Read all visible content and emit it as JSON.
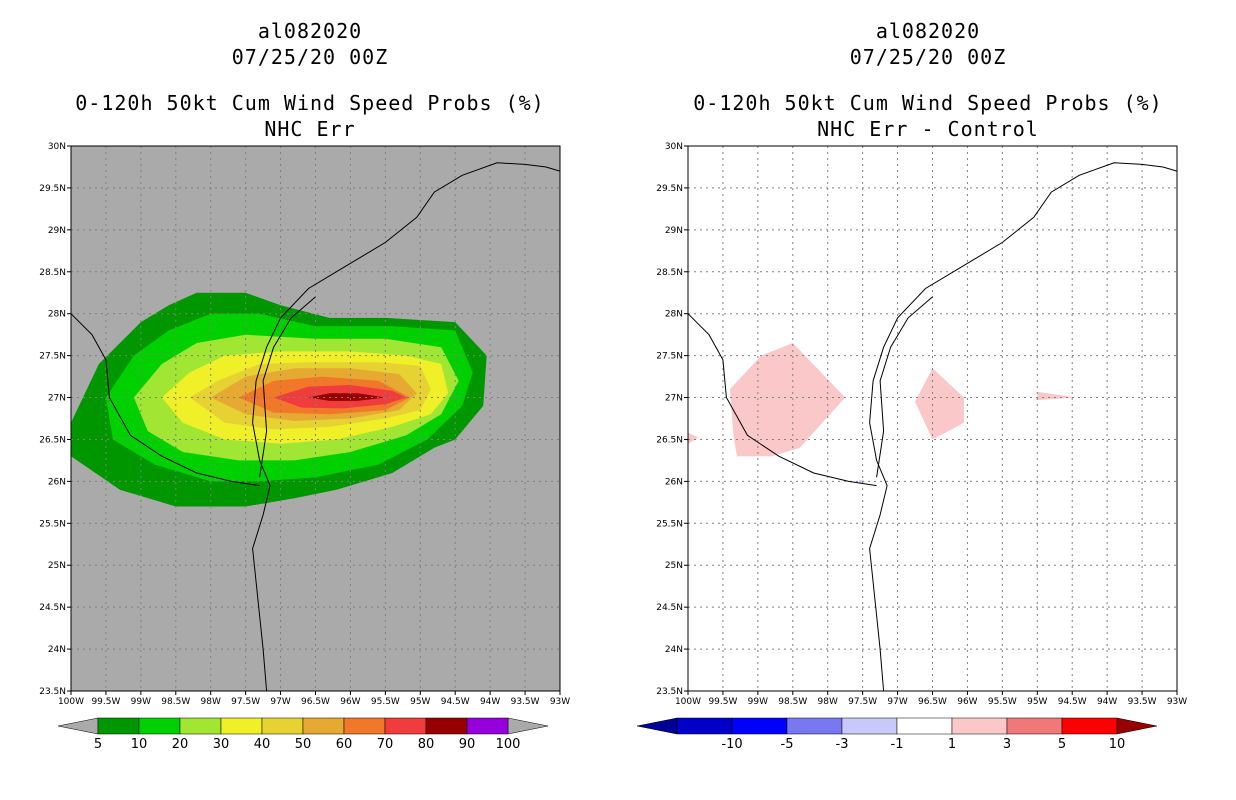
{
  "chart_data": [
    {
      "type": "heatmap",
      "panel": "left",
      "title_lines": [
        "al082020",
        "07/25/20 00Z",
        "0-120h 50kt Cum Wind Speed Probs (%)",
        "NHC Err"
      ],
      "xlim": [
        -100,
        -93
      ],
      "ylim": [
        23.5,
        30
      ],
      "x_tick_labels": [
        "100W",
        "99.5W",
        "99W",
        "98.5W",
        "98W",
        "97.5W",
        "97W",
        "96.5W",
        "96W",
        "95.5W",
        "95W",
        "94.5W",
        "94W",
        "93.5W",
        "93W"
      ],
      "y_tick_labels": [
        "23.5N",
        "24N",
        "24.5N",
        "25N",
        "25.5N",
        "26N",
        "26.5N",
        "27N",
        "27.5N",
        "28N",
        "28.5N",
        "29N",
        "29.5N",
        "30N"
      ],
      "colorbar": {
        "labels": [
          "5",
          "10",
          "20",
          "30",
          "40",
          "50",
          "60",
          "70",
          "80",
          "90",
          "100"
        ],
        "colors": [
          "#009600",
          "#00d000",
          "#a0e632",
          "#f0f028",
          "#e6d232",
          "#e6aa32",
          "#f07828",
          "#f03c3c",
          "#960000",
          "#9600dc"
        ],
        "extend_color": "#aaaaaa"
      },
      "background": "#aaaaaa",
      "contours": [
        {
          "level": 5,
          "color": "#009600",
          "points": [
            [
              -100,
              26.7
            ],
            [
              -99.6,
              27.4
            ],
            [
              -99,
              27.9
            ],
            [
              -98.6,
              28.1
            ],
            [
              -98.2,
              28.25
            ],
            [
              -97.5,
              28.25
            ],
            [
              -97,
              28.1
            ],
            [
              -96.3,
              27.95
            ],
            [
              -95.5,
              27.95
            ],
            [
              -94.5,
              27.9
            ],
            [
              -94.05,
              27.5
            ],
            [
              -94.1,
              26.9
            ],
            [
              -94.5,
              26.5
            ],
            [
              -94.8,
              26.4
            ],
            [
              -95.4,
              26.1
            ],
            [
              -96.2,
              25.9
            ],
            [
              -96.8,
              25.8
            ],
            [
              -97.5,
              25.7
            ],
            [
              -98.5,
              25.7
            ],
            [
              -99.3,
              25.9
            ],
            [
              -100,
              26.3
            ]
          ]
        },
        {
          "level": 10,
          "color": "#00d000",
          "points": [
            [
              -99.5,
              27.0
            ],
            [
              -99.1,
              27.5
            ],
            [
              -98.6,
              27.8
            ],
            [
              -98,
              28.0
            ],
            [
              -97.3,
              28.0
            ],
            [
              -96.5,
              27.85
            ],
            [
              -95.4,
              27.85
            ],
            [
              -94.5,
              27.8
            ],
            [
              -94.25,
              27.3
            ],
            [
              -94.4,
              26.9
            ],
            [
              -94.9,
              26.5
            ],
            [
              -95.6,
              26.2
            ],
            [
              -96.5,
              26.05
            ],
            [
              -97.3,
              26.0
            ],
            [
              -98,
              26.0
            ],
            [
              -98.8,
              26.2
            ],
            [
              -99.4,
              26.5
            ]
          ]
        },
        {
          "level": 20,
          "color": "#a0e632",
          "points": [
            [
              -99.1,
              27.0
            ],
            [
              -98.7,
              27.4
            ],
            [
              -98.2,
              27.65
            ],
            [
              -97.5,
              27.75
            ],
            [
              -96.5,
              27.7
            ],
            [
              -95.5,
              27.7
            ],
            [
              -94.7,
              27.6
            ],
            [
              -94.45,
              27.2
            ],
            [
              -94.7,
              26.8
            ],
            [
              -95.2,
              26.55
            ],
            [
              -96,
              26.35
            ],
            [
              -96.8,
              26.25
            ],
            [
              -97.6,
              26.25
            ],
            [
              -98.4,
              26.35
            ],
            [
              -98.9,
              26.6
            ]
          ]
        },
        {
          "level": 30,
          "color": "#f0f028",
          "points": [
            [
              -98.7,
              27.0
            ],
            [
              -98.3,
              27.3
            ],
            [
              -97.8,
              27.5
            ],
            [
              -97,
              27.55
            ],
            [
              -96,
              27.55
            ],
            [
              -95.2,
              27.5
            ],
            [
              -94.7,
              27.4
            ],
            [
              -94.6,
              27.05
            ],
            [
              -94.85,
              26.8
            ],
            [
              -95.4,
              26.65
            ],
            [
              -96.2,
              26.5
            ],
            [
              -97,
              26.45
            ],
            [
              -97.8,
              26.5
            ],
            [
              -98.4,
              26.7
            ]
          ]
        },
        {
          "level": 40,
          "color": "#e6d232",
          "points": [
            [
              -98.3,
              27.0
            ],
            [
              -97.9,
              27.2
            ],
            [
              -97.3,
              27.4
            ],
            [
              -96.6,
              27.42
            ],
            [
              -95.6,
              27.42
            ],
            [
              -95,
              27.38
            ],
            [
              -94.85,
              27.1
            ],
            [
              -95,
              26.85
            ],
            [
              -95.5,
              26.75
            ],
            [
              -96.3,
              26.65
            ],
            [
              -97.1,
              26.62
            ],
            [
              -97.8,
              26.7
            ]
          ]
        },
        {
          "level": 50,
          "color": "#e6aa32",
          "points": [
            [
              -98,
              27.0
            ],
            [
              -97.5,
              27.25
            ],
            [
              -96.8,
              27.35
            ],
            [
              -96,
              27.35
            ],
            [
              -95.3,
              27.28
            ],
            [
              -95.05,
              27.05
            ],
            [
              -95.3,
              26.85
            ],
            [
              -96,
              26.75
            ],
            [
              -96.8,
              26.72
            ],
            [
              -97.5,
              26.8
            ]
          ]
        },
        {
          "level": 60,
          "color": "#f07828",
          "points": [
            [
              -97.6,
              27.0
            ],
            [
              -97.1,
              27.2
            ],
            [
              -96.4,
              27.25
            ],
            [
              -95.6,
              27.2
            ],
            [
              -95.15,
              27.0
            ],
            [
              -95.5,
              26.85
            ],
            [
              -96.3,
              26.8
            ],
            [
              -97.1,
              26.82
            ]
          ]
        },
        {
          "level": 70,
          "color": "#f03c3c",
          "points": [
            [
              -97.1,
              27.0
            ],
            [
              -96.6,
              27.13
            ],
            [
              -96,
              27.15
            ],
            [
              -95.4,
              27.08
            ],
            [
              -95.2,
              27.0
            ],
            [
              -95.5,
              26.92
            ],
            [
              -96.1,
              26.87
            ],
            [
              -96.7,
              26.88
            ]
          ]
        },
        {
          "level": 80,
          "color": "#960000",
          "points": [
            [
              -96.6,
              27.0
            ],
            [
              -96.3,
              27.05
            ],
            [
              -95.9,
              27.05
            ],
            [
              -95.5,
              27.0
            ],
            [
              -95.9,
              26.96
            ],
            [
              -96.3,
              26.96
            ]
          ]
        }
      ]
    },
    {
      "type": "heatmap",
      "panel": "right",
      "title_lines": [
        "al082020",
        "07/25/20 00Z",
        "0-120h 50kt Cum Wind Speed Probs (%)",
        "NHC Err - Control"
      ],
      "xlim": [
        -100,
        -93
      ],
      "ylim": [
        23.5,
        30
      ],
      "x_tick_labels": [
        "100W",
        "99.5W",
        "99W",
        "98.5W",
        "98W",
        "97.5W",
        "97W",
        "96.5W",
        "96W",
        "95.5W",
        "95W",
        "94.5W",
        "94W",
        "93.5W",
        "93W"
      ],
      "y_tick_labels": [
        "23.5N",
        "24N",
        "24.5N",
        "25N",
        "25.5N",
        "26N",
        "26.5N",
        "27N",
        "27.5N",
        "28N",
        "28.5N",
        "29N",
        "29.5N",
        "30N"
      ],
      "colorbar": {
        "labels": [
          "-10",
          "-5",
          "-3",
          "-1",
          "1",
          "3",
          "5",
          "10"
        ],
        "colors": [
          "#0000c8",
          "#0000ff",
          "#7878f0",
          "#c8c8fa",
          "#ffffff",
          "#fac8c8",
          "#f07878",
          "#ff0000"
        ],
        "low_extend_color": "#000096",
        "high_extend_color": "#960000"
      },
      "background": "#ffffff",
      "contours": [
        {
          "level": 1,
          "color": "#fac8c8",
          "points": [
            [
              -99.4,
              27.1
            ],
            [
              -98.95,
              27.5
            ],
            [
              -98.5,
              27.65
            ],
            [
              -97.75,
              27.0
            ],
            [
              -98.4,
              26.4
            ],
            [
              -98.8,
              26.3
            ],
            [
              -99.3,
              26.3
            ],
            [
              -99.35,
              26.55
            ]
          ]
        },
        {
          "level": 1,
          "color": "#fac8c8",
          "points": [
            [
              -96.5,
              27.35
            ],
            [
              -96.05,
              27.0
            ],
            [
              -96.05,
              26.7
            ],
            [
              -96.5,
              26.5
            ],
            [
              -96.75,
              26.95
            ]
          ]
        },
        {
          "level": 1,
          "color": "#fac8c8",
          "points": [
            [
              -95,
              27.07
            ],
            [
              -94.45,
              27.0
            ],
            [
              -95,
              26.97
            ]
          ]
        },
        {
          "level": 1,
          "color": "#fac8c8",
          "points": [
            [
              -100,
              26.58
            ],
            [
              -99.85,
              26.52
            ],
            [
              -100,
              26.45
            ]
          ]
        },
        {
          "level": -1,
          "color": "#c8c8fa",
          "points": [
            [
              -97.55,
              26.02
            ],
            [
              -97.45,
              26.0
            ],
            [
              -97.55,
              25.98
            ]
          ]
        }
      ]
    }
  ]
}
